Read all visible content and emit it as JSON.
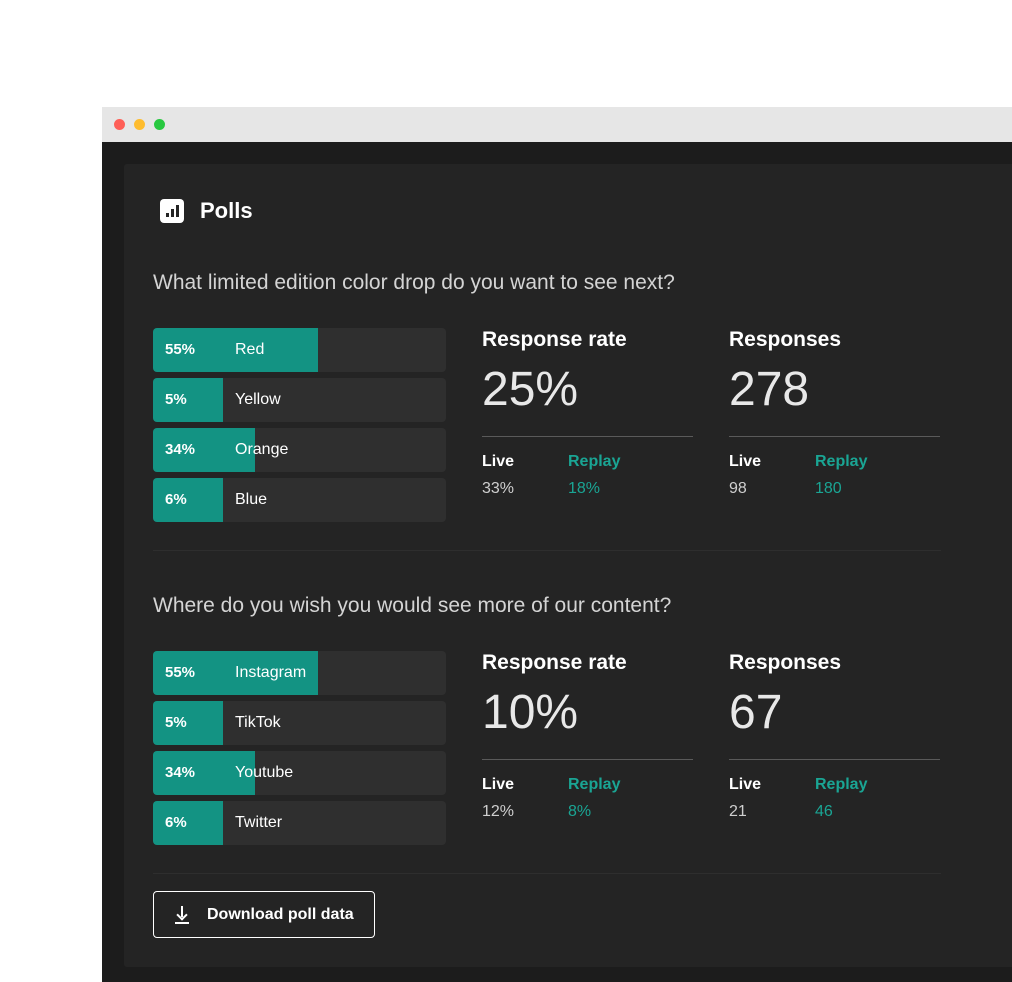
{
  "header": {
    "title": "Polls",
    "icon": "bar-chart-icon"
  },
  "colors": {
    "accent": "#139383",
    "replay": "#1aa594"
  },
  "polls": [
    {
      "question": "What limited edition color drop do you want to see next?",
      "options": [
        {
          "label": "Red",
          "percent": 55
        },
        {
          "label": "Yellow",
          "percent": 5
        },
        {
          "label": "Orange",
          "percent": 34
        },
        {
          "label": "Blue",
          "percent": 6
        }
      ],
      "response_rate": {
        "title": "Response rate",
        "value": "25%",
        "live_label": "Live",
        "live_value": "33%",
        "replay_label": "Replay",
        "replay_value": "18%"
      },
      "responses": {
        "title": "Responses",
        "value": "278",
        "live_label": "Live",
        "live_value": "98",
        "replay_label": "Replay",
        "replay_value": "180"
      }
    },
    {
      "question": "Where do you wish you would see more of our content?",
      "options": [
        {
          "label": "Instagram",
          "percent": 55
        },
        {
          "label": "TikTok",
          "percent": 5
        },
        {
          "label": "Youtube",
          "percent": 34
        },
        {
          "label": "Twitter",
          "percent": 6
        }
      ],
      "response_rate": {
        "title": "Response rate",
        "value": "10%",
        "live_label": "Live",
        "live_value": "12%",
        "replay_label": "Replay",
        "replay_value": "8%"
      },
      "responses": {
        "title": "Responses",
        "value": "67",
        "live_label": "Live",
        "live_value": "21",
        "replay_label": "Replay",
        "replay_value": "46"
      }
    }
  ],
  "download": {
    "label": "Download poll data",
    "icon": "download-icon"
  }
}
